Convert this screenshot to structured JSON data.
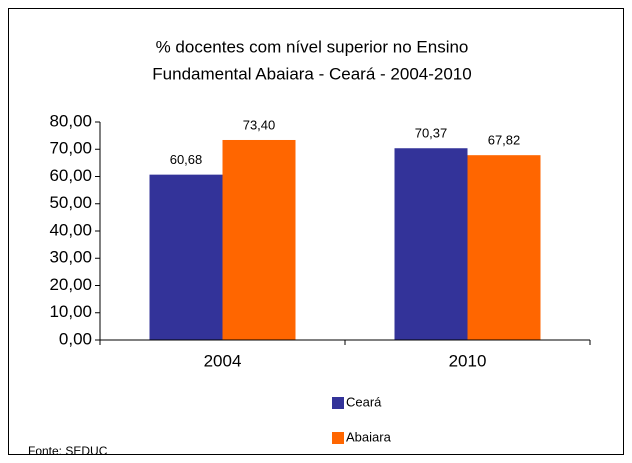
{
  "chart_data": {
    "type": "bar",
    "title": [
      "% docentes com nível  superior no Ensino",
      "Fundamental  Abaiara  -  Ceará - 2004-2010"
    ],
    "categories": [
      "2004",
      "2010"
    ],
    "series": [
      {
        "name": "Ceará",
        "color": "#333399",
        "values": [
          60.68,
          70.37
        ],
        "value_labels": [
          "60,68",
          "70,37"
        ]
      },
      {
        "name": "Abaiara",
        "color": "#ff6600",
        "values": [
          73.4,
          67.82
        ],
        "value_labels": [
          "73,40",
          "67,82"
        ]
      }
    ],
    "ylim": [
      0,
      80
    ],
    "yticks": [
      {
        "value": 0,
        "label": "0,00"
      },
      {
        "value": 10,
        "label": "10,00"
      },
      {
        "value": 20,
        "label": "20,00"
      },
      {
        "value": 30,
        "label": "30,00"
      },
      {
        "value": 40,
        "label": "40,00"
      },
      {
        "value": 50,
        "label": "50,00"
      },
      {
        "value": 60,
        "label": "60,00"
      },
      {
        "value": 70,
        "label": "70,00"
      },
      {
        "value": 80,
        "label": "80,00"
      }
    ],
    "grid": false,
    "legend": "bottom",
    "source": "Fonte: SEDUC"
  }
}
